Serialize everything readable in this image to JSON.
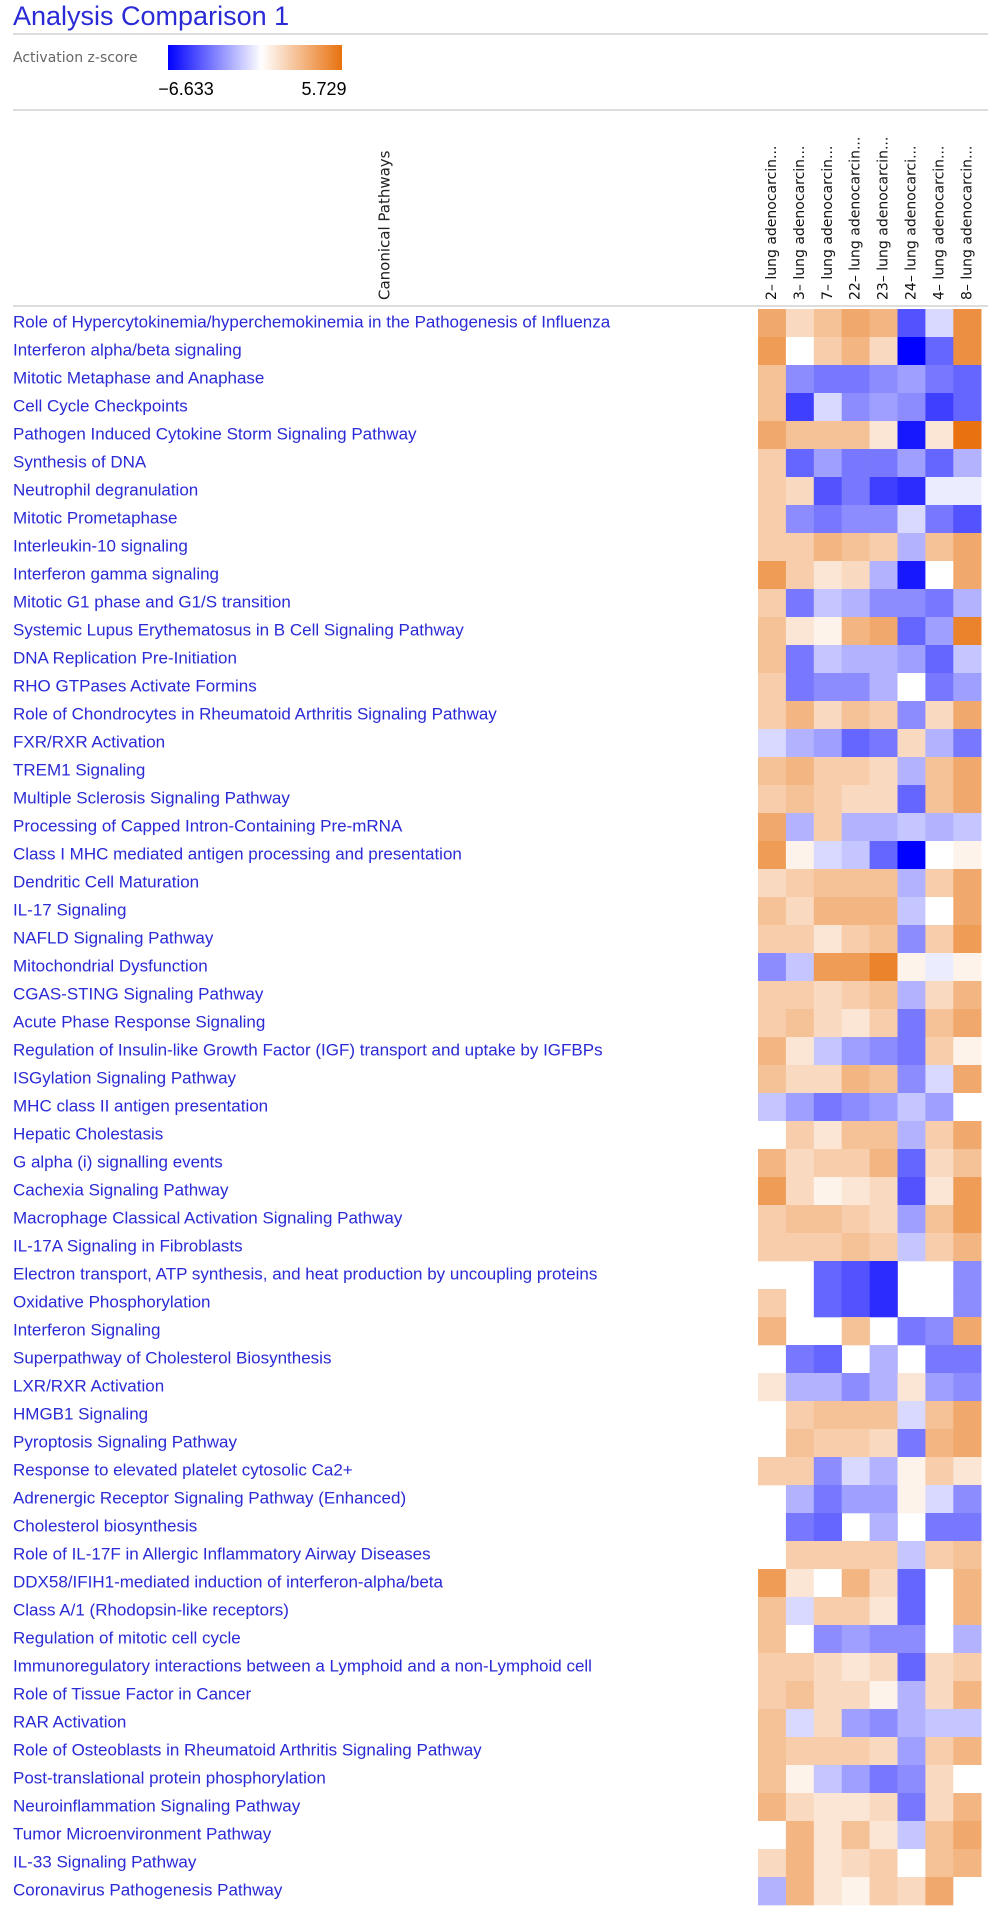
{
  "chart_data": {
    "type": "heatmap",
    "title": "Analysis Comparison 1",
    "colorbar_label": "Activation z-score",
    "zlim": [
      -6.633,
      5.729
    ],
    "colorbar_ticks": [
      {
        "value": -6.633,
        "label": "−6.633"
      },
      {
        "value": 5.729,
        "label": "5.729"
      }
    ],
    "colorscale": [
      "#0000ff",
      "#ffffff",
      "#e8710e"
    ],
    "ylabel": "Canonical Pathways",
    "x": [
      "2– lung adenocarcin...",
      "3– lung adenocarcin...",
      "7– lung adenocarcin...",
      "22– lung adenocarcin...",
      "23– lung adenocarcin...",
      "24– lung adenocarci...",
      "4– lung adenocarcin...",
      "8– lung adenocarcin..."
    ],
    "categories": [
      "Role of Hypercytokinemia/hyperchemokinemia in the Pathogenesis of Influenza",
      "Interferon alpha/beta signaling",
      "Mitotic Metaphase and Anaphase",
      "Cell Cycle Checkpoints",
      "Pathogen Induced Cytokine Storm Signaling Pathway",
      "Synthesis of DNA",
      "Neutrophil degranulation",
      "Mitotic Prometaphase",
      "Interleukin-10 signaling",
      "Interferon gamma signaling",
      "Mitotic G1 phase and G1/S transition",
      "Systemic Lupus Erythematosus in B Cell Signaling Pathway",
      "DNA Replication Pre-Initiation",
      "RHO GTPases Activate Formins",
      "Role of Chondrocytes in Rheumatoid Arthritis Signaling Pathway",
      "FXR/RXR Activation",
      "TREM1 Signaling",
      "Multiple Sclerosis Signaling Pathway",
      "Processing of Capped Intron-Containing Pre-mRNA",
      "Class I MHC mediated antigen processing and presentation",
      "Dendritic Cell Maturation",
      "IL-17 Signaling",
      "NAFLD Signaling Pathway",
      "Mitochondrial Dysfunction",
      "CGAS-STING Signaling Pathway",
      "Acute Phase Response Signaling",
      "Regulation of Insulin-like Growth Factor (IGF) transport and uptake by IGFBPs",
      "ISGylation Signaling Pathway",
      "MHC class II antigen presentation",
      "Hepatic Cholestasis",
      "G alpha (i) signalling events",
      "Cachexia Signaling Pathway",
      "Macrophage Classical Activation Signaling Pathway",
      "IL-17A Signaling in Fibroblasts",
      "Electron transport, ATP synthesis, and heat production by uncoupling proteins",
      "Oxidative Phosphorylation",
      "Interferon Signaling",
      "Superpathway of Cholesterol Biosynthesis",
      "LXR/RXR Activation",
      "HMGB1 Signaling",
      "Pyroptosis Signaling Pathway",
      "Response to elevated platelet cytosolic Ca2+",
      "Adrenergic Receptor Signaling Pathway (Enhanced)",
      "Cholesterol biosynthesis",
      "Role of IL-17F in Allergic Inflammatory Airway Diseases",
      "DDX58/IFIH1-mediated induction of interferon-alpha/beta",
      "Class A/1 (Rhodopsin-like receptors)",
      "Regulation of mitotic cell cycle",
      "Immunoregulatory interactions between a Lymphoid and a non-Lymphoid cell",
      "Role of Tissue Factor in Cancer",
      "RAR Activation",
      "Role of Osteoblasts in Rheumatoid Arthritis Signaling Pathway",
      "Post-translational protein phosphorylation",
      "Neuroinflammation Signaling Pathway",
      "Tumor Microenvironment Pathway",
      "IL-33 Signaling Pathway",
      "Coronavirus Pathogenesis Pathway"
    ],
    "values": [
      [
        3.5,
        1.5,
        2.5,
        3.5,
        3,
        -4.5,
        -1,
        4.5
      ],
      [
        4,
        0,
        2,
        3,
        1.5,
        -6.6,
        -4,
        4.5
      ],
      [
        2.5,
        -3,
        -3.5,
        -3.5,
        -3,
        -2.5,
        -3.5,
        -4
      ],
      [
        2.5,
        -5,
        -1,
        -3,
        -2.5,
        -3,
        -5,
        -4
      ],
      [
        3.5,
        2.5,
        2.5,
        2.5,
        1,
        -6,
        1,
        5.7
      ],
      [
        2,
        -4,
        -2.5,
        -3.5,
        -3.5,
        -2.5,
        -4,
        -2
      ],
      [
        2,
        1.5,
        -4.5,
        -3.5,
        -5,
        -5.5,
        -0.5,
        -0.5
      ],
      [
        2,
        -3,
        -3.5,
        -3,
        -3,
        -1,
        -3.5,
        -4.5
      ],
      [
        2,
        2,
        3,
        2.5,
        2,
        -2,
        2.5,
        3.5
      ],
      [
        4,
        2,
        1,
        1.5,
        -2,
        -6,
        0,
        3.5
      ],
      [
        2,
        -3.5,
        -1.5,
        -2,
        -3,
        -3,
        -3.5,
        -2
      ],
      [
        2.5,
        1,
        0.5,
        3,
        3.5,
        -4,
        -2.5,
        5
      ],
      [
        2.5,
        -3.5,
        -1.5,
        -2,
        -2,
        -2.5,
        -4,
        -1.5
      ],
      [
        2,
        -3.5,
        -3,
        -3,
        -2,
        0,
        -3.5,
        -2.5
      ],
      [
        2,
        3,
        1.5,
        2.5,
        2,
        -3,
        1.5,
        3.5
      ],
      [
        -1,
        -2,
        -2.5,
        -4,
        -3.5,
        1.5,
        -2,
        -3.5
      ],
      [
        2.5,
        3,
        2,
        2,
        1.5,
        -2,
        2.5,
        3.5
      ],
      [
        2,
        2.5,
        2,
        1.5,
        1.5,
        -4,
        2.5,
        3.5
      ],
      [
        3.5,
        -2,
        2,
        -2,
        -2,
        -1.5,
        -2,
        -1.5
      ],
      [
        4,
        0.5,
        -1,
        -1.5,
        -4,
        -6.6,
        0,
        0.5
      ],
      [
        1.5,
        2,
        2.5,
        2.5,
        2.5,
        -2,
        2,
        3.5
      ],
      [
        2.5,
        1.5,
        3,
        3,
        3,
        -1.5,
        0,
        3.5
      ],
      [
        2,
        2,
        1,
        2,
        2.5,
        -3,
        2,
        4
      ],
      [
        -3,
        -1.5,
        4,
        4,
        5,
        0.5,
        -0.5,
        0.5
      ],
      [
        2,
        2,
        1.5,
        2,
        2.5,
        -2,
        1.5,
        3
      ],
      [
        2,
        2.5,
        1.5,
        1,
        2,
        -3.5,
        2.5,
        3.5
      ],
      [
        3,
        1,
        -1.5,
        -2.5,
        -3,
        -3.5,
        2,
        0.5
      ],
      [
        2.5,
        1.5,
        1.5,
        3,
        2.5,
        -3,
        -1,
        3.5
      ],
      [
        -1.5,
        -2.5,
        -3.5,
        -3,
        -2.5,
        -1.5,
        -2.5,
        0
      ],
      [
        0,
        2,
        1,
        2.5,
        2.5,
        -2,
        2,
        3.5
      ],
      [
        3,
        1.5,
        2,
        2,
        3,
        -4,
        1.5,
        2.5
      ],
      [
        4,
        1.5,
        0.5,
        1,
        1.5,
        -4.5,
        1,
        4
      ],
      [
        2,
        2.5,
        2.5,
        2,
        1.5,
        -2.5,
        2.5,
        4
      ],
      [
        2,
        2,
        2,
        2.5,
        2,
        -1.5,
        2,
        3
      ],
      [
        null,
        null,
        -4,
        -4.5,
        -5.5,
        null,
        null,
        -3
      ],
      [
        2,
        null,
        -4,
        -4.5,
        -5.5,
        null,
        null,
        -3
      ],
      [
        3,
        null,
        null,
        2.5,
        null,
        -3.5,
        -3,
        3.5
      ],
      [
        null,
        -3.5,
        -4,
        null,
        -2,
        null,
        -3.5,
        -3.5
      ],
      [
        1,
        -2,
        -2,
        -3,
        -2,
        1,
        -2.5,
        -3
      ],
      [
        null,
        2,
        2.5,
        2.5,
        2.5,
        -1,
        2.5,
        3.5
      ],
      [
        null,
        2.5,
        2,
        2,
        1.5,
        -3.5,
        3,
        3.5
      ],
      [
        2,
        2,
        -3,
        -1,
        -2,
        0.5,
        2,
        1
      ],
      [
        null,
        -2,
        -3.5,
        -2.5,
        -2.5,
        0.5,
        -1,
        -3
      ],
      [
        null,
        -3.5,
        -4,
        null,
        -2,
        null,
        -3.5,
        -3.5
      ],
      [
        null,
        2,
        2,
        2,
        2,
        -1.5,
        2,
        2.5
      ],
      [
        4,
        1,
        0,
        3,
        1.5,
        -4,
        0,
        3
      ],
      [
        2.5,
        -1,
        2,
        2,
        1,
        -4,
        0,
        3
      ],
      [
        2.5,
        0,
        -3,
        -2.5,
        -3,
        -3,
        0,
        -2
      ],
      [
        2,
        2,
        1.5,
        1,
        1.5,
        -4,
        1.5,
        2
      ],
      [
        2,
        2.5,
        1.5,
        1.5,
        0.5,
        -2,
        1.5,
        3
      ],
      [
        2.5,
        -1,
        1.5,
        -2.5,
        -3,
        -2,
        -1.5,
        -1.5
      ],
      [
        2.5,
        2,
        2,
        2,
        1.5,
        -2.5,
        2,
        3
      ],
      [
        2.5,
        0.5,
        -1.5,
        -2.5,
        -3.5,
        -3,
        1.5,
        0
      ],
      [
        3,
        1.5,
        1,
        1,
        1.5,
        -3.5,
        1.5,
        3
      ],
      [
        0,
        3,
        1,
        2.5,
        1,
        -1.5,
        2.5,
        3.5
      ],
      [
        1.5,
        3,
        1,
        1.5,
        2,
        0,
        2.5,
        3
      ],
      [
        -2,
        3,
        1,
        0.5,
        2,
        1.5,
        3.5,
        0
      ]
    ]
  }
}
